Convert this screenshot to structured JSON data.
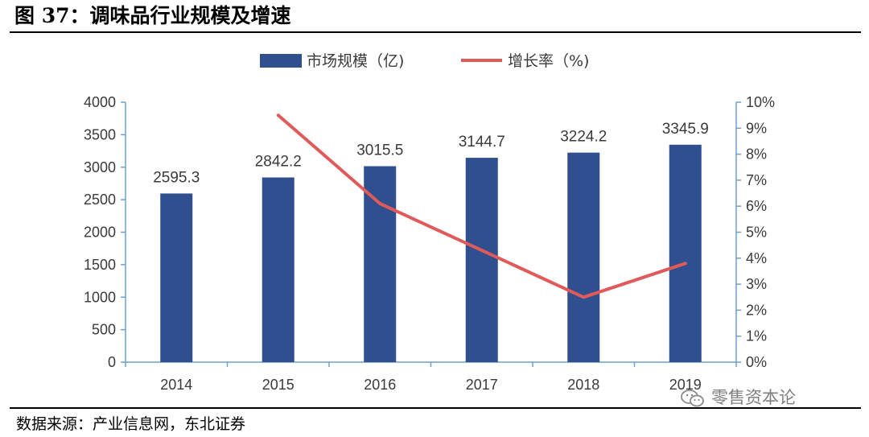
{
  "figure": {
    "title": "图 37：调味品行业规模及增速",
    "source": "数据来源：产业信息网，东北证券",
    "watermark": "零售资本论"
  },
  "colors": {
    "bar": "#2f4f8f",
    "line": "#e05a5a",
    "axis": "#6ea0c8"
  },
  "chart_data": {
    "type": "bar",
    "categories": [
      "2014",
      "2015",
      "2016",
      "2017",
      "2018",
      "2019"
    ],
    "series": [
      {
        "name": "市场规模（亿)",
        "type": "bar",
        "axis": "left",
        "values": [
          2595.3,
          2842.2,
          3015.5,
          3144.7,
          3224.2,
          3345.9
        ],
        "labels": [
          "2595.3",
          "2842.2",
          "3015.5",
          "3144.7",
          "3224.2",
          "3345.9"
        ]
      },
      {
        "name": "增长率（%)",
        "type": "line",
        "axis": "right",
        "values": [
          null,
          9.5,
          6.1,
          4.3,
          2.5,
          3.8
        ]
      }
    ],
    "y_left": {
      "lim": [
        0,
        4000
      ],
      "ticks": [
        "0",
        "500",
        "1000",
        "1500",
        "2000",
        "2500",
        "3000",
        "3500",
        "4000"
      ]
    },
    "y_right": {
      "lim": [
        0,
        10
      ],
      "ticks": [
        "0%",
        "1%",
        "2%",
        "3%",
        "4%",
        "5%",
        "6%",
        "7%",
        "8%",
        "9%",
        "10%"
      ]
    },
    "legend_position": "top-center",
    "grid": false
  }
}
